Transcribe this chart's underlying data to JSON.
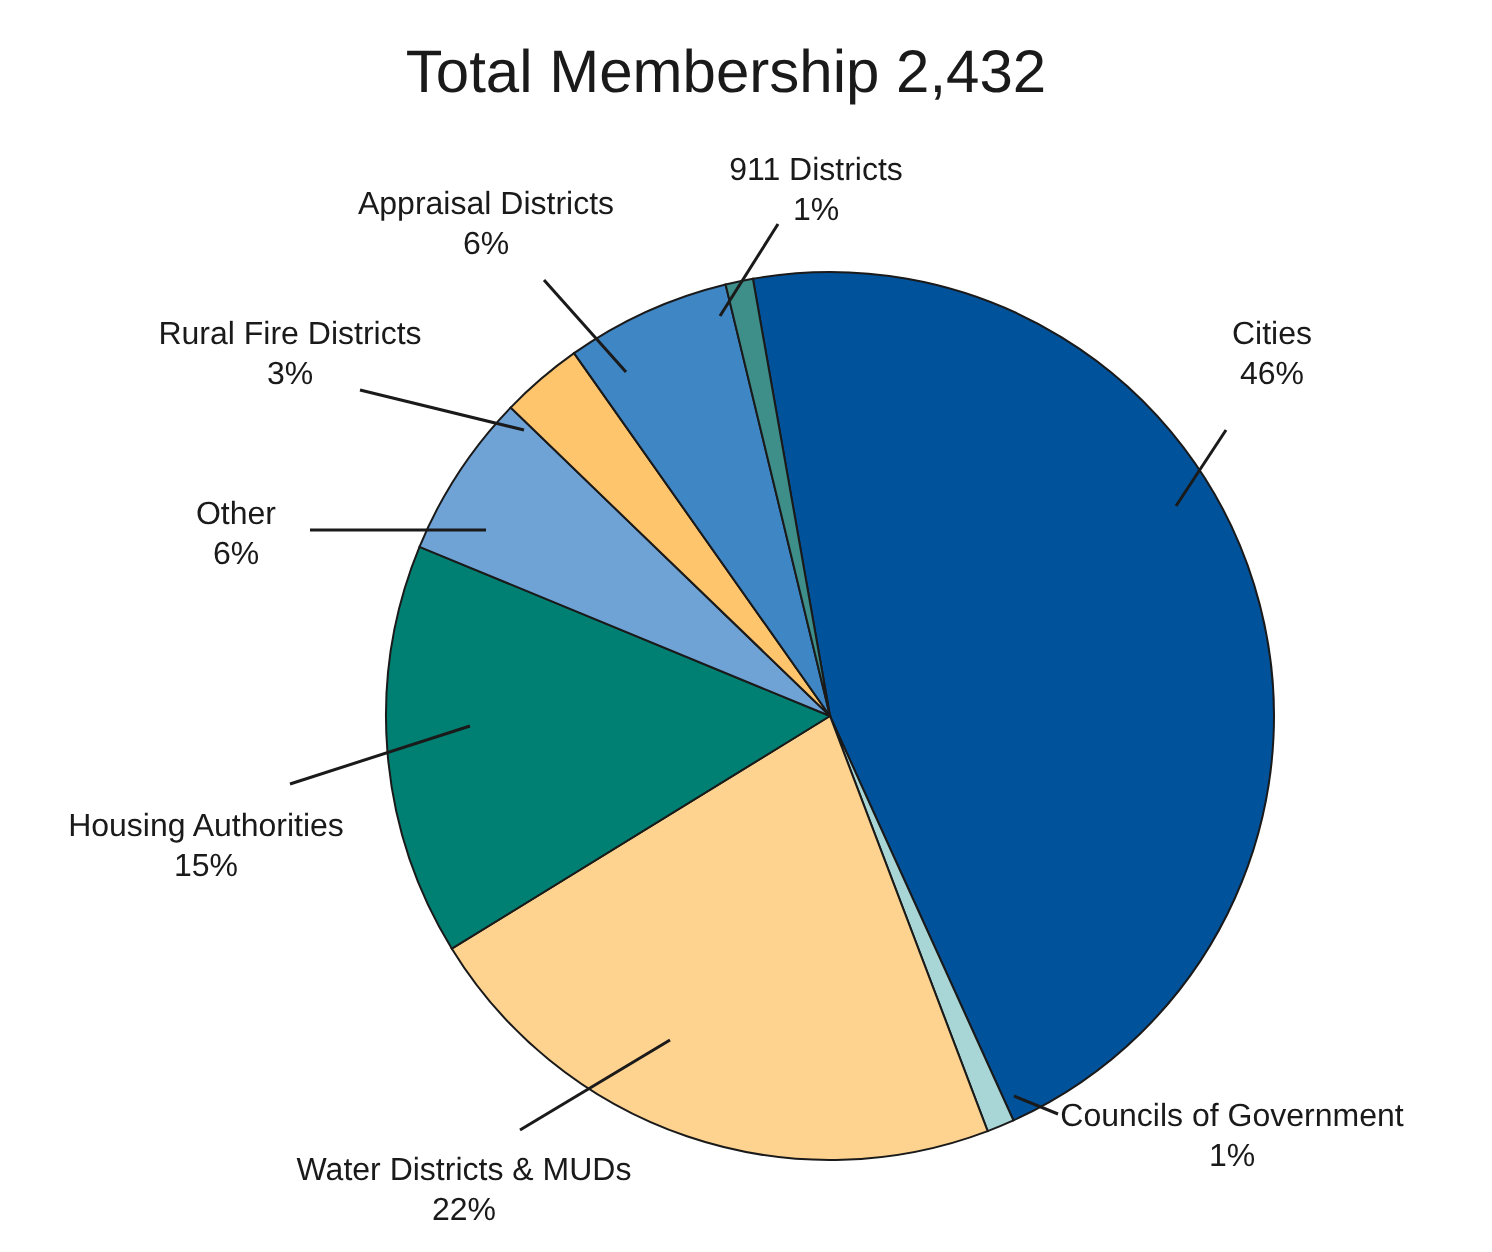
{
  "chart_data": {
    "type": "pie",
    "title": "Total Membership 2,432",
    "categories": [
      "Cities",
      "Councils of Government",
      "Water Districts & MUDs",
      "Housing Authorities",
      "Other",
      "Rural Fire Districts",
      "Appraisal Districts",
      "911 Districts"
    ],
    "values": [
      46,
      1,
      22,
      15,
      6,
      3,
      6,
      1
    ],
    "value_labels": [
      "46%",
      "1%",
      "22%",
      "15%",
      "6%",
      "3%",
      "6%",
      "1%"
    ],
    "colors": [
      "#00529b",
      "#a8d5d5",
      "#fed38f",
      "#008073",
      "#6fa3d6",
      "#fec56d",
      "#3f86c5",
      "#3e8f8a"
    ]
  }
}
